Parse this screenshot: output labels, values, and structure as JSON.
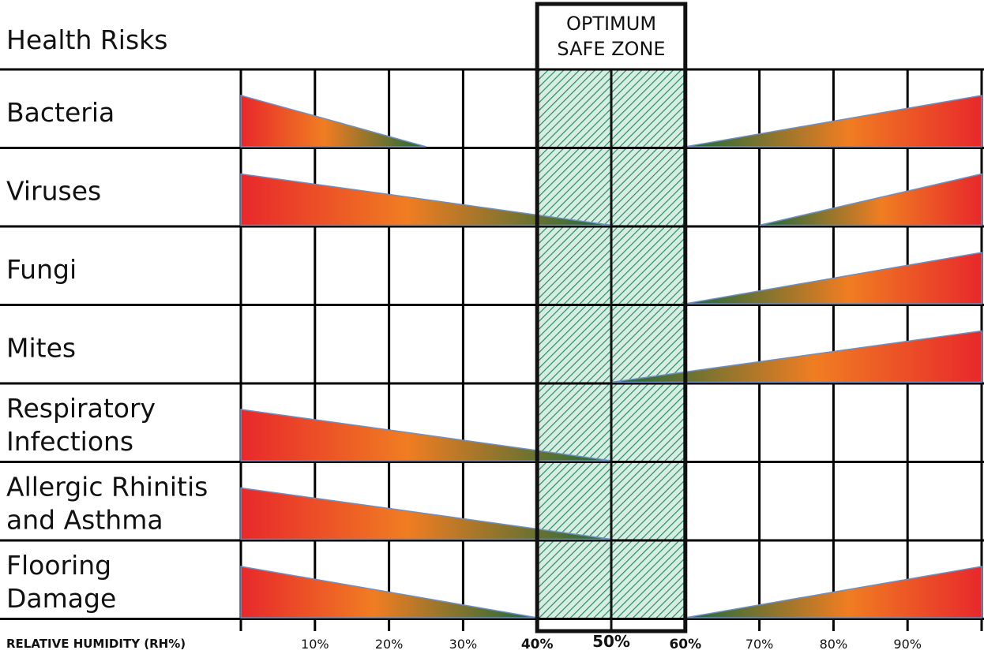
{
  "chart_data": {
    "type": "table",
    "header": "Health Risks",
    "safe_zone": {
      "label_lines": [
        "OPTIMUM",
        "SAFE ZONE"
      ],
      "range": [
        40,
        60
      ]
    },
    "xlabel": "RELATIVE HUMIDITY (RH%)",
    "xlim": [
      0,
      100
    ],
    "ticks": [
      {
        "value": 10,
        "label": "10%",
        "weight": "normal"
      },
      {
        "value": 20,
        "label": "20%",
        "weight": "normal"
      },
      {
        "value": 30,
        "label": "30%",
        "weight": "normal"
      },
      {
        "value": 40,
        "label": "40%",
        "weight": "bold"
      },
      {
        "value": 50,
        "label": "50%",
        "weight": "bolder"
      },
      {
        "value": 60,
        "label": "60%",
        "weight": "bold"
      },
      {
        "value": 70,
        "label": "70%",
        "weight": "normal"
      },
      {
        "value": 80,
        "label": "80%",
        "weight": "normal"
      },
      {
        "value": 90,
        "label": "90%",
        "weight": "normal"
      }
    ],
    "rows": [
      {
        "lines": [
          "Bacteria"
        ],
        "low_risk_end": 25,
        "high_risk_start": 60
      },
      {
        "lines": [
          "Viruses"
        ],
        "low_risk_end": 50,
        "high_risk_start": 70
      },
      {
        "lines": [
          "Fungi"
        ],
        "low_risk_end": null,
        "high_risk_start": 60
      },
      {
        "lines": [
          "Mites"
        ],
        "low_risk_end": null,
        "high_risk_start": 50
      },
      {
        "lines": [
          "Respiratory",
          "Infections"
        ],
        "low_risk_end": 50,
        "high_risk_start": null
      },
      {
        "lines": [
          "Allergic Rhinitis",
          "and Asthma"
        ],
        "low_risk_end": 50,
        "high_risk_start": null
      },
      {
        "lines": [
          "Flooring",
          "Damage"
        ],
        "low_risk_end": 40,
        "high_risk_start": 60
      }
    ],
    "colors": {
      "high": "#e8282b",
      "mid": "#f07d22",
      "low": "#1a6b3a",
      "safe_zone_fill": "#d6eee2",
      "safe_zone_hatch": "#2e8b67",
      "grid": "#000000"
    }
  }
}
